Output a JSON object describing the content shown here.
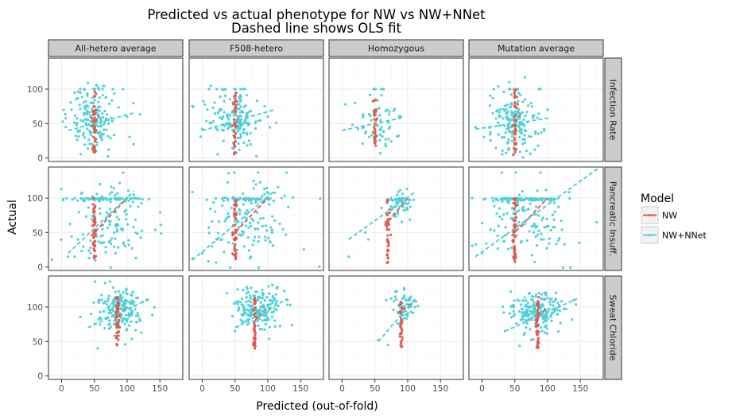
{
  "chart_data": {
    "type": "scatter",
    "title": [
      "Predicted vs actual phenotype for NW vs NW+NNet",
      "Dashed line shows OLS fit"
    ],
    "xlabel": "Predicted (out-of-fold)",
    "ylabel": "Actual",
    "facet_columns": [
      "All-hetero average",
      "F508-hetero",
      "Homozygous",
      "Mutation average"
    ],
    "facet_rows": [
      "Infection Rate",
      "Pancreatic Insuff.",
      "Sweat Chloride"
    ],
    "xlim": [
      -20,
      185
    ],
    "x_ticks": [
      0,
      50,
      100,
      150
    ],
    "ylim_by_row": [
      [
        -5,
        145
      ],
      [
        -5,
        145
      ],
      [
        -5,
        145
      ]
    ],
    "y_ticks": [
      0,
      50,
      100
    ],
    "grid": true,
    "legend": {
      "title": "Model",
      "position": "right",
      "entries": [
        {
          "name": "NW",
          "color": "#e05a4e"
        },
        {
          "name": "NW+NNet",
          "color": "#4fd1d9"
        }
      ]
    },
    "colors": {
      "NW": "#e05a4e",
      "NW+NNet": "#4fd1d9"
    },
    "panels": [
      {
        "row": 0,
        "col": 0,
        "nw_cluster": {
          "x": 50,
          "y_range": [
            5,
            100
          ],
          "n": 40
        },
        "nnet_cloud": {
          "x_center": 50,
          "x_spread": 18,
          "y_center": 55,
          "y_spread": 22,
          "n": 170
        },
        "fits": {
          "NW": [
            [
              45,
              45
            ],
            [
              58,
              62
            ]
          ],
          "NW+NNet": [
            [
              10,
              40
            ],
            [
              113,
              66
            ]
          ]
        },
        "outliers": [
          [
            110,
            20
          ],
          [
            15,
            70
          ],
          [
            20,
            95
          ],
          [
            100,
            60
          ]
        ]
      },
      {
        "row": 0,
        "col": 1,
        "nw_cluster": {
          "x": 50,
          "y_range": [
            5,
            100
          ],
          "n": 40
        },
        "nnet_cloud": {
          "x_center": 50,
          "x_spread": 20,
          "y_center": 55,
          "y_spread": 22,
          "n": 170
        },
        "fits": {
          "NW": [
            [
              45,
              45
            ],
            [
              58,
              62
            ]
          ],
          "NW+NNet": [
            [
              0,
              40
            ],
            [
              110,
              70
            ]
          ]
        },
        "outliers": [
          [
            10,
            100
          ],
          [
            100,
            60
          ],
          [
            95,
            75
          ],
          [
            0,
            42
          ]
        ]
      },
      {
        "row": 0,
        "col": 2,
        "nw_cluster": {
          "x": 50,
          "y_range": [
            10,
            85
          ],
          "n": 30
        },
        "nnet_cloud": {
          "x_center": 55,
          "x_spread": 15,
          "y_center": 50,
          "y_spread": 18,
          "n": 60
        },
        "fits": {
          "NW": [
            [
              48,
              45
            ],
            [
              55,
              60
            ]
          ],
          "NW+NNet": [
            [
              0,
              40
            ],
            [
              90,
              58
            ]
          ]
        },
        "outliers": [
          [
            5,
            78
          ],
          [
            20,
            80
          ],
          [
            90,
            60
          ]
        ]
      },
      {
        "row": 0,
        "col": 3,
        "nw_cluster": {
          "x": 50,
          "y_range": [
            2,
            100
          ],
          "n": 40
        },
        "nnet_cloud": {
          "x_center": 50,
          "x_spread": 18,
          "y_center": 52,
          "y_spread": 20,
          "n": 170
        },
        "fits": {
          "NW": [
            [
              45,
              45
            ],
            [
              58,
              62
            ]
          ],
          "NW+NNet": [
            [
              -10,
              42
            ],
            [
              103,
              58
            ]
          ]
        },
        "outliers": [
          [
            -10,
            45
          ],
          [
            100,
            70
          ],
          [
            95,
            40
          ]
        ]
      },
      {
        "row": 1,
        "col": 0,
        "nw_cluster": {
          "x": 50,
          "y_range": [
            10,
            100
          ],
          "n": 45
        },
        "nnet_cloud": {
          "x_center": 70,
          "x_spread": 30,
          "y_center": 65,
          "y_spread": 30,
          "n": 180
        },
        "fits": {
          "NW": [
            [
              45,
              45
            ],
            [
              100,
              100
            ]
          ],
          "NW+NNet": [
            [
              10,
              20
            ],
            [
              110,
              110
            ]
          ]
        },
        "outliers": [
          [
            10,
            15
          ],
          [
            20,
            15
          ],
          [
            25,
            40
          ],
          [
            110,
            105
          ]
        ]
      },
      {
        "row": 1,
        "col": 1,
        "nw_cluster": {
          "x": 50,
          "y_range": [
            10,
            100
          ],
          "n": 45
        },
        "nnet_cloud": {
          "x_center": 70,
          "x_spread": 30,
          "y_center": 65,
          "y_spread": 30,
          "n": 180
        },
        "fits": {
          "NW": [
            [
              45,
              45
            ],
            [
              100,
              100
            ]
          ],
          "NW+NNet": [
            [
              -15,
              10
            ],
            [
              110,
              110
            ]
          ]
        },
        "outliers": [
          [
            -15,
            12
          ],
          [
            0,
            20
          ],
          [
            15,
            30
          ],
          [
            30,
            40
          ]
        ]
      },
      {
        "row": 1,
        "col": 2,
        "nw_cluster": {
          "x": 70,
          "y_range": [
            5,
            100
          ],
          "n": 35
        },
        "nnet_cloud": {
          "x_center": 85,
          "x_spread": 12,
          "y_center": 90,
          "y_spread": 12,
          "n": 60
        },
        "fits": {
          "NW": [
            [
              65,
              60
            ],
            [
              100,
              100
            ]
          ],
          "NW+NNet": [
            [
              10,
              40
            ],
            [
              110,
              108
            ]
          ]
        },
        "outliers": [
          [
            10,
            15
          ],
          [
            35,
            50
          ],
          [
            40,
            40
          ]
        ]
      },
      {
        "row": 1,
        "col": 3,
        "nw_cluster": {
          "x": 50,
          "y_range": [
            5,
            100
          ],
          "n": 50
        },
        "nnet_cloud": {
          "x_center": 70,
          "x_spread": 30,
          "y_center": 70,
          "y_spread": 28,
          "n": 200
        },
        "fits": {
          "NW": [
            [
              45,
              45
            ],
            [
              100,
              100
            ]
          ],
          "NW+NNet": [
            [
              -10,
              15
            ],
            [
              180,
              145
            ]
          ]
        },
        "outliers": [
          [
            175,
            65
          ],
          [
            0,
            20
          ],
          [
            90,
            40
          ]
        ]
      },
      {
        "row": 2,
        "col": 0,
        "nw_cluster": {
          "x": 85,
          "y_range": [
            40,
            115
          ],
          "n": 45
        },
        "nnet_cloud": {
          "x_center": 90,
          "x_spread": 18,
          "y_center": 95,
          "y_spread": 15,
          "n": 180
        },
        "fits": {
          "NW": [
            [
              80,
              80
            ],
            [
              100,
              100
            ]
          ],
          "NW+NNet": [
            [
              40,
              70
            ],
            [
              135,
              112
            ]
          ]
        },
        "outliers": [
          [
            55,
            40
          ],
          [
            130,
            110
          ],
          [
            45,
            90
          ]
        ]
      },
      {
        "row": 2,
        "col": 1,
        "nw_cluster": {
          "x": 80,
          "y_range": [
            40,
            115
          ],
          "n": 45
        },
        "nnet_cloud": {
          "x_center": 85,
          "x_spread": 18,
          "y_center": 95,
          "y_spread": 15,
          "n": 180
        },
        "fits": {
          "NW": [
            [
              80,
              80
            ],
            [
              100,
              100
            ]
          ],
          "NW+NNet": [
            [
              50,
              70
            ],
            [
              130,
              112
            ]
          ]
        },
        "outliers": [
          [
            50,
            65
          ],
          [
            130,
            110
          ],
          [
            55,
            95
          ]
        ]
      },
      {
        "row": 2,
        "col": 2,
        "nw_cluster": {
          "x": 90,
          "y_range": [
            40,
            110
          ],
          "n": 30
        },
        "nnet_cloud": {
          "x_center": 95,
          "x_spread": 10,
          "y_center": 100,
          "y_spread": 12,
          "n": 60
        },
        "fits": {
          "NW": [
            [
              85,
              90
            ],
            [
              105,
              105
            ]
          ],
          "NW+NNet": [
            [
              55,
              50
            ],
            [
              110,
              110
            ]
          ]
        },
        "outliers": [
          [
            55,
            52
          ],
          [
            70,
            45
          ],
          [
            105,
            115
          ]
        ]
      },
      {
        "row": 2,
        "col": 3,
        "nw_cluster": {
          "x": 85,
          "y_range": [
            40,
            115
          ],
          "n": 45
        },
        "nnet_cloud": {
          "x_center": 85,
          "x_spread": 20,
          "y_center": 95,
          "y_spread": 15,
          "n": 200
        },
        "fits": {
          "NW": [
            [
              80,
              80
            ],
            [
              100,
              100
            ]
          ],
          "NW+NNet": [
            [
              35,
              65
            ],
            [
              145,
              112
            ]
          ]
        },
        "outliers": [
          [
            35,
            65
          ],
          [
            140,
            110
          ],
          [
            45,
            85
          ]
        ]
      }
    ]
  }
}
